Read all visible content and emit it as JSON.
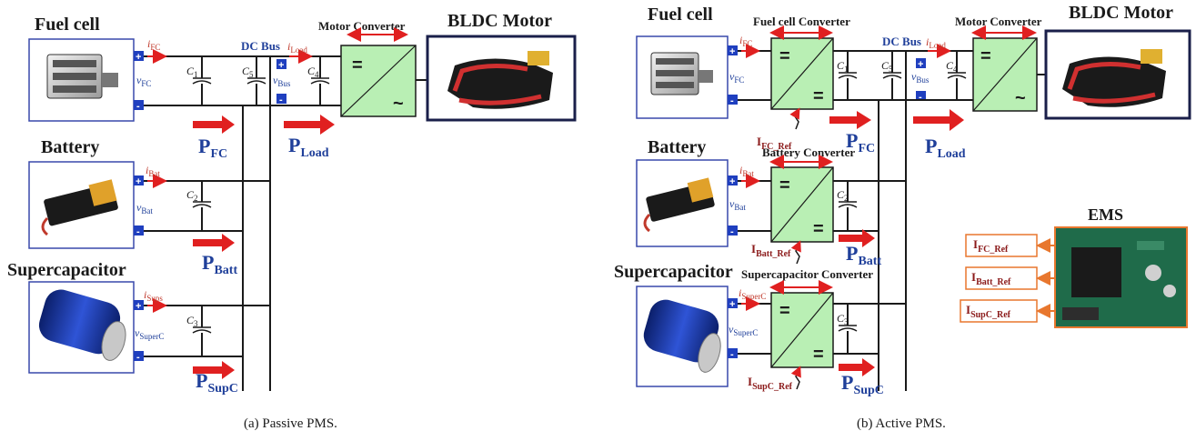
{
  "panel_a": {
    "sources": [
      "Fuel cell",
      "Battery",
      "Supercapacitor"
    ],
    "bus_label": "DC Bus",
    "motor_converter": "Motor Converter",
    "motor": "BLDC Motor",
    "currents": [
      {
        "v": "i",
        "s": "FC"
      },
      {
        "v": "i",
        "s": "Bat"
      },
      {
        "v": "i",
        "s": "Sups"
      },
      {
        "v": "i",
        "s": "Load"
      }
    ],
    "voltages": [
      {
        "v": "v",
        "s": "FC"
      },
      {
        "v": "v",
        "s": "Bat"
      },
      {
        "v": "v",
        "s": "SuperC"
      },
      {
        "v": "v",
        "s": "Bus"
      }
    ],
    "caps": [
      {
        "v": "C",
        "s": "1"
      },
      {
        "v": "C",
        "s": "2"
      },
      {
        "v": "C",
        "s": "3"
      },
      {
        "v": "C",
        "s": "5"
      },
      {
        "v": "C",
        "s": "4"
      }
    ],
    "powers": [
      {
        "v": "P",
        "s": "FC"
      },
      {
        "v": "P",
        "s": "Batt"
      },
      {
        "v": "P",
        "s": "SupC"
      },
      {
        "v": "P",
        "s": "Load"
      }
    ],
    "caption": "(a) Passive PMS."
  },
  "panel_b": {
    "sources": [
      "Fuel cell",
      "Battery",
      "Supercapacitor"
    ],
    "converters": [
      "Fuel cell Converter",
      "Battery Converter",
      "Supercapacitor Converter"
    ],
    "bus_label": "DC Bus",
    "motor_converter": "Motor Converter",
    "motor": "BLDC Motor",
    "ems": "EMS",
    "currents": [
      {
        "v": "i",
        "s": "FC"
      },
      {
        "v": "i",
        "s": "Bat"
      },
      {
        "v": "i",
        "s": "SuperC"
      },
      {
        "v": "i",
        "s": "Load"
      }
    ],
    "voltages": [
      {
        "v": "v",
        "s": "FC"
      },
      {
        "v": "v",
        "s": "Bat"
      },
      {
        "v": "v",
        "s": "SuperC"
      },
      {
        "v": "v",
        "s": "Bus"
      }
    ],
    "caps": [
      {
        "v": "C",
        "s": "1"
      },
      {
        "v": "C",
        "s": "2"
      },
      {
        "v": "C",
        "s": "3"
      },
      {
        "v": "C",
        "s": "5"
      },
      {
        "v": "C",
        "s": "4"
      }
    ],
    "powers": [
      {
        "v": "P",
        "s": "FC"
      },
      {
        "v": "P",
        "s": "Batt"
      },
      {
        "v": "P",
        "s": "SupC"
      },
      {
        "v": "P",
        "s": "Load"
      }
    ],
    "refs": [
      {
        "v": "I",
        "s": "FC_Ref"
      },
      {
        "v": "I",
        "s": "Batt_Ref"
      },
      {
        "v": "I",
        "s": "SupC_Ref"
      }
    ],
    "caption": "(b) Active PMS."
  },
  "symbols": {
    "plus": "+",
    "minus": "-",
    "equal": "=",
    "ac": "~"
  },
  "colors": {
    "arrow": "#e02020",
    "blue_label": "#1f3f9a",
    "ref_label": "#8b1a1a",
    "converter_fill": "#b9efb4",
    "ems_border": "#e8772e",
    "pcb": "#1f6b4a"
  }
}
